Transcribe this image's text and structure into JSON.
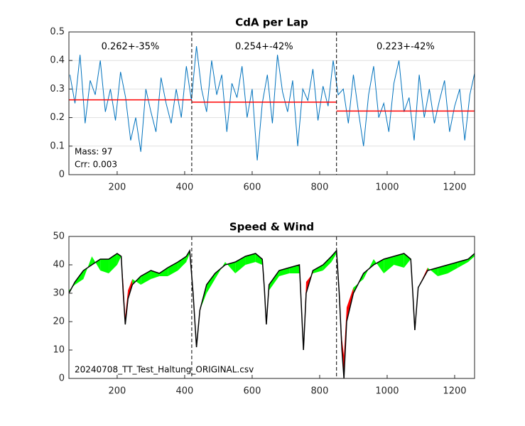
{
  "chart_data": [
    {
      "type": "line",
      "title": "CdA per Lap",
      "x": [
        60,
        75,
        90,
        105,
        120,
        135,
        150,
        165,
        180,
        195,
        210,
        225,
        240,
        255,
        270,
        285,
        300,
        315,
        330,
        345,
        360,
        375,
        390,
        405,
        420,
        435,
        450,
        465,
        480,
        495,
        510,
        525,
        540,
        555,
        570,
        585,
        600,
        615,
        630,
        645,
        660,
        675,
        690,
        705,
        720,
        735,
        750,
        765,
        780,
        795,
        810,
        825,
        840,
        855,
        870,
        885,
        900,
        915,
        930,
        945,
        960,
        975,
        990,
        1005,
        1020,
        1035,
        1050,
        1065,
        1080,
        1095,
        1110,
        1125,
        1140,
        1155,
        1170,
        1185,
        1200,
        1215,
        1230,
        1245,
        1260
      ],
      "series": [
        {
          "color": "#0072bd",
          "values": [
            0.35,
            0.25,
            0.42,
            0.18,
            0.33,
            0.28,
            0.4,
            0.22,
            0.3,
            0.19,
            0.36,
            0.27,
            0.12,
            0.2,
            0.08,
            0.3,
            0.22,
            0.15,
            0.34,
            0.25,
            0.18,
            0.3,
            0.2,
            0.38,
            0.26,
            0.45,
            0.3,
            0.22,
            0.4,
            0.28,
            0.35,
            0.15,
            0.32,
            0.27,
            0.38,
            0.2,
            0.3,
            0.05,
            0.25,
            0.35,
            0.18,
            0.42,
            0.29,
            0.22,
            0.33,
            0.1,
            0.3,
            0.26,
            0.37,
            0.19,
            0.31,
            0.24,
            0.4,
            0.28,
            0.3,
            0.18,
            0.35,
            0.22,
            0.1,
            0.28,
            0.38,
            0.2,
            0.25,
            0.15,
            0.32,
            0.4,
            0.22,
            0.27,
            0.12,
            0.35,
            0.2,
            0.3,
            0.18,
            0.26,
            0.33,
            0.15,
            0.24,
            0.3,
            0.12,
            0.28,
            0.36
          ]
        }
      ],
      "laps": [
        {
          "start": 57,
          "end": 421,
          "mean": 0.262,
          "label": "0.262+-35%"
        },
        {
          "start": 421,
          "end": 850,
          "mean": 0.254,
          "label": "0.254+-42%"
        },
        {
          "start": 850,
          "end": 1259,
          "mean": 0.223,
          "label": "0.223+-42%"
        }
      ],
      "mean_color": "#ff0000",
      "lap_boundaries": [
        421,
        850
      ],
      "annotations": [
        "Mass: 97",
        "Crr: 0.003"
      ],
      "xlim": [
        57,
        1259
      ],
      "xticks": [
        200,
        400,
        600,
        800,
        1000,
        1200
      ],
      "ylim": [
        0,
        0.5
      ],
      "yticks": [
        0,
        0.1,
        0.2,
        0.3,
        0.4,
        0.5
      ],
      "grid": true
    },
    {
      "type": "wind",
      "title": "Speed & Wind",
      "x": [
        57,
        75,
        100,
        125,
        150,
        175,
        200,
        212,
        218,
        224,
        232,
        245,
        270,
        300,
        325,
        350,
        380,
        405,
        415,
        425,
        435,
        445,
        465,
        490,
        520,
        550,
        580,
        610,
        630,
        636,
        642,
        650,
        680,
        710,
        740,
        746,
        752,
        760,
        780,
        810,
        835,
        850,
        858,
        866,
        872,
        880,
        900,
        930,
        960,
        990,
        1020,
        1050,
        1070,
        1076,
        1082,
        1092,
        1120,
        1150,
        1180,
        1210,
        1240,
        1259
      ],
      "series": [
        {
          "color": "#000000",
          "values": [
            30,
            34,
            38,
            40,
            42,
            42,
            44,
            43,
            30,
            19,
            28,
            33,
            36,
            38,
            37,
            39,
            41,
            43,
            45,
            30,
            11,
            24,
            33,
            37,
            40,
            41,
            43,
            44,
            42,
            32,
            19,
            33,
            38,
            39,
            40,
            25,
            10,
            30,
            38,
            40,
            43,
            45,
            30,
            10,
            0,
            20,
            30,
            37,
            40,
            42,
            43,
            44,
            42,
            30,
            17,
            32,
            38,
            39,
            40,
            41,
            42,
            44
          ]
        },
        {
          "values": [
            31,
            33,
            35,
            43,
            38,
            37,
            40,
            43,
            34,
            22,
            31,
            35,
            33,
            35,
            36,
            36,
            38,
            41,
            44,
            30,
            11,
            24,
            30,
            35,
            41,
            37,
            40,
            41,
            40,
            32,
            19,
            31,
            36,
            37,
            37,
            27,
            12,
            34,
            37,
            38,
            41,
            44,
            30,
            14,
            8,
            25,
            32,
            35,
            42,
            37,
            40,
            39,
            42,
            30,
            17,
            32,
            39,
            36,
            37,
            39,
            41,
            43
          ]
        }
      ],
      "fill_above_color": "#ff0000",
      "fill_below_color": "#00ff00",
      "lap_boundaries": [
        421,
        850
      ],
      "annotations": [
        "20240708_TT_Test_Haltung_ORIGINAL.csv"
      ],
      "xlim": [
        57,
        1259
      ],
      "xticks": [
        200,
        400,
        600,
        800,
        1000,
        1200
      ],
      "ylim": [
        0,
        50
      ],
      "yticks": [
        0,
        10,
        20,
        30,
        40,
        50
      ],
      "grid": false
    }
  ]
}
